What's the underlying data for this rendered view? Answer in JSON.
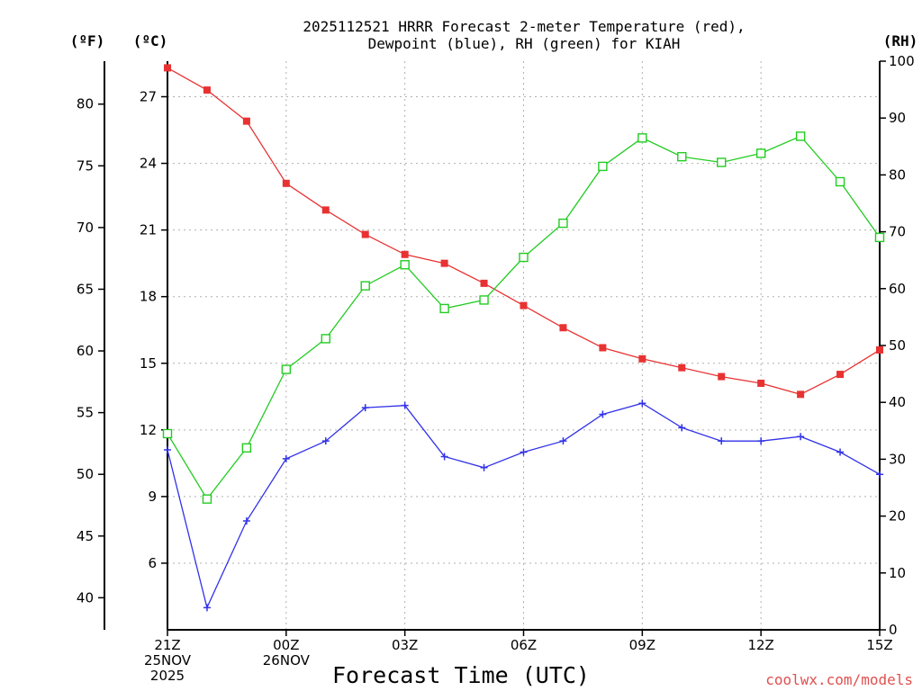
{
  "chart_data": {
    "type": "line",
    "title": [
      "2025112521 HRRR Forecast 2-meter Temperature (red),",
      "Dewpoint (blue), RH (green) for KIAH"
    ],
    "xlabel": "Forecast Time (UTC)",
    "watermark": "coolwx.com/models",
    "units": {
      "fahrenheit": "(ºF)",
      "celsius": "(ºC)",
      "rh": "(RH)"
    },
    "x_hours": [
      0,
      1,
      2,
      3,
      4,
      5,
      6,
      7,
      8,
      9,
      10,
      11,
      12,
      13,
      14,
      15,
      16,
      17,
      18
    ],
    "x_ticks": [
      {
        "hour": 0,
        "lines": [
          "21Z",
          "25NOV",
          "2025"
        ]
      },
      {
        "hour": 3,
        "lines": [
          "00Z",
          "26NOV"
        ]
      },
      {
        "hour": 6,
        "lines": [
          "03Z"
        ]
      },
      {
        "hour": 9,
        "lines": [
          "06Z"
        ]
      },
      {
        "hour": 12,
        "lines": [
          "09Z"
        ]
      },
      {
        "hour": 15,
        "lines": [
          "12Z"
        ]
      },
      {
        "hour": 18,
        "lines": [
          "15Z"
        ]
      }
    ],
    "xlim": [
      0,
      18
    ],
    "ylim_celsius": [
      3.0,
      28.6
    ],
    "yticks_celsius": [
      6,
      9,
      12,
      15,
      18,
      21,
      24,
      27
    ],
    "yticks_fahrenheit": [
      40,
      45,
      50,
      55,
      60,
      65,
      70,
      75,
      80
    ],
    "ylim_rh": [
      0,
      100
    ],
    "yticks_rh": [
      0,
      10,
      20,
      30,
      40,
      50,
      60,
      70,
      80,
      90,
      100
    ],
    "grid": true,
    "series": [
      {
        "name": "Temperature",
        "axis": "celsius",
        "color": "#e83232",
        "marker": "filled-square",
        "values": [
          28.3,
          27.3,
          25.9,
          23.1,
          21.9,
          20.8,
          19.9,
          19.5,
          18.6,
          17.6,
          16.6,
          15.7,
          15.2,
          14.8,
          14.4,
          14.1,
          13.6,
          14.5,
          15.6
        ]
      },
      {
        "name": "Dewpoint",
        "axis": "celsius",
        "color": "#3232e8",
        "marker": "plus",
        "values": [
          11.1,
          4.0,
          7.9,
          10.7,
          11.5,
          13.0,
          13.1,
          10.8,
          10.3,
          11.0,
          11.5,
          12.7,
          13.2,
          12.1,
          11.5,
          11.5,
          11.7,
          11.0,
          10.0
        ]
      },
      {
        "name": "RH",
        "axis": "rh",
        "color": "#22cc22",
        "marker": "open-square",
        "values": [
          34.5,
          23.0,
          32.0,
          45.8,
          51.2,
          60.5,
          64.2,
          56.5,
          58.0,
          65.5,
          71.5,
          81.5,
          86.5,
          83.2,
          82.2,
          83.8,
          86.8,
          78.8,
          69.0
        ]
      }
    ]
  }
}
